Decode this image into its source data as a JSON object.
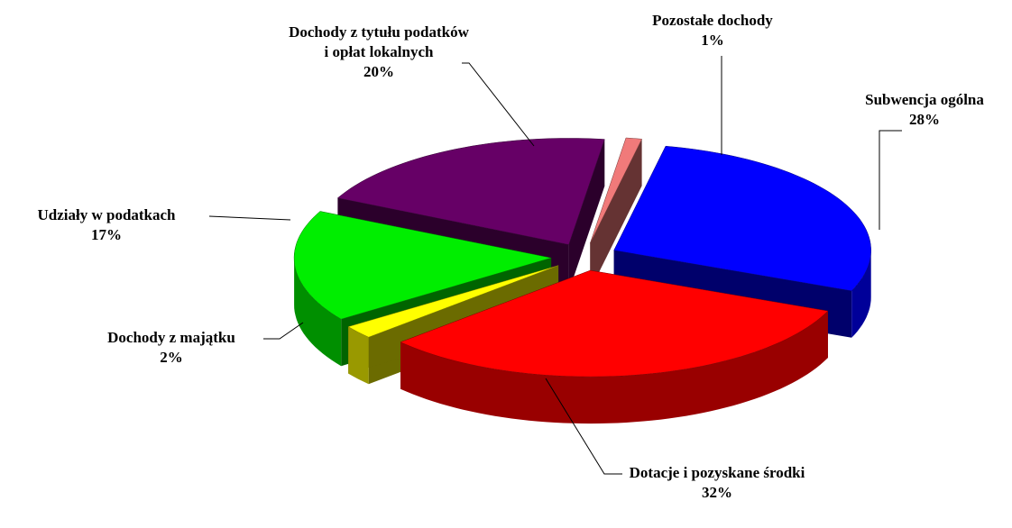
{
  "chart_data": {
    "type": "pie3d",
    "categories": [
      "Pozostałe dochody",
      "Subwencja ogólna",
      "Dotacje i pozyskane środki",
      "Dochody z majątku",
      "Udziały w podatkach",
      "Dochody z tytułu podatków i opłat lokalnych"
    ],
    "values": [
      1,
      28,
      32,
      2,
      17,
      20
    ],
    "value_labels": [
      "1%",
      "28%",
      "32%",
      "2%",
      "17%",
      "20%"
    ],
    "colors": [
      "#f07a7a",
      "#0000ff",
      "#ff0000",
      "#ffff00",
      "#00ee00",
      "#660066"
    ]
  }
}
